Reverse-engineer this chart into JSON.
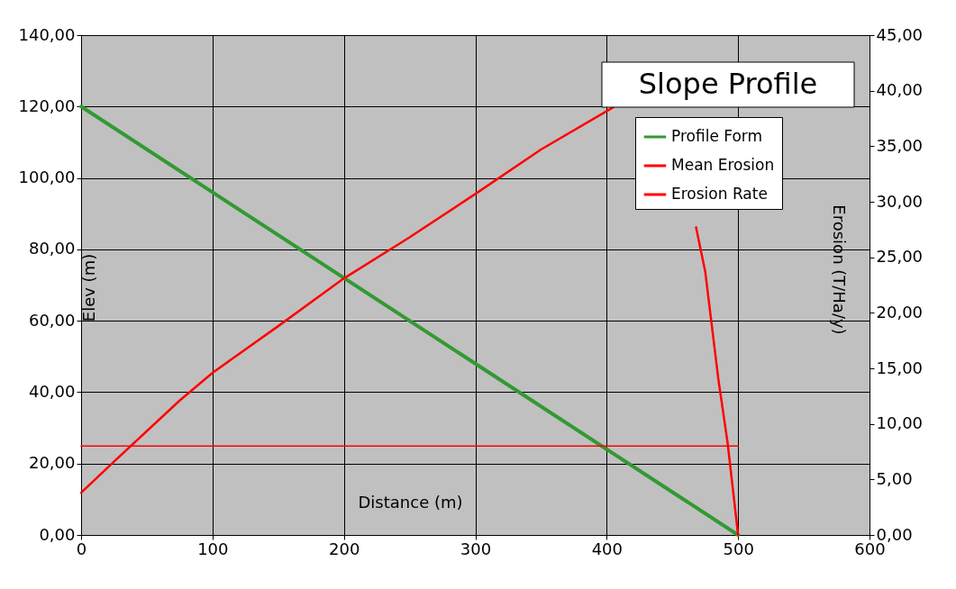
{
  "chart_data": {
    "type": "line",
    "title": "Slope Profile",
    "xlabel": "Distance (m)",
    "ylabel": "Elev (m)",
    "y2label": "Erosion (T/Ha/y)",
    "xlim": [
      0,
      600
    ],
    "xticks": [
      0,
      100,
      200,
      300,
      400,
      500,
      600
    ],
    "ylim": [
      0,
      140
    ],
    "yticks": [
      {
        "value": 0,
        "label": "0,00"
      },
      {
        "value": 20,
        "label": "20,00"
      },
      {
        "value": 40,
        "label": "40,00"
      },
      {
        "value": 60,
        "label": "60,00"
      },
      {
        "value": 80,
        "label": "80,00"
      },
      {
        "value": 100,
        "label": "100,00"
      },
      {
        "value": 120,
        "label": "120,00"
      },
      {
        "value": 140,
        "label": "140,00"
      }
    ],
    "y2lim": [
      0,
      45
    ],
    "y2ticks": [
      {
        "value": 0,
        "label": "0,00"
      },
      {
        "value": 5,
        "label": "5,00"
      },
      {
        "value": 10,
        "label": "10,00"
      },
      {
        "value": 15,
        "label": "15,00"
      },
      {
        "value": 20,
        "label": "20,00"
      },
      {
        "value": 25,
        "label": "25,00"
      },
      {
        "value": 30,
        "label": "30,00"
      },
      {
        "value": 35,
        "label": "35,00"
      },
      {
        "value": 40,
        "label": "40,00"
      },
      {
        "value": 45,
        "label": "45,00"
      }
    ],
    "grid": true,
    "legend": "top right",
    "series": [
      {
        "name": "Profile Form",
        "color": "#339933",
        "x": [
          0,
          500
        ],
        "values": [
          120,
          0
        ]
      },
      {
        "name": "Mean Erosion",
        "color": "#ff0000",
        "axis": "y2",
        "x": [
          0,
          500
        ],
        "values": [
          8.0,
          8.0
        ]
      },
      {
        "name": "Erosion Rate",
        "color": "#ff0000",
        "axis": "y2",
        "x": [
          0,
          25,
          75,
          100,
          150,
          200,
          250,
          300,
          350,
          405,
          440,
          468,
          475,
          485,
          492,
          500
        ],
        "values": [
          3.8,
          6.6,
          12.1,
          14.6,
          18.8,
          23.1,
          26.8,
          30.7,
          34.7,
          38.5,
          null,
          27.7,
          23.7,
          14.0,
          8.3,
          0
        ]
      }
    ]
  }
}
